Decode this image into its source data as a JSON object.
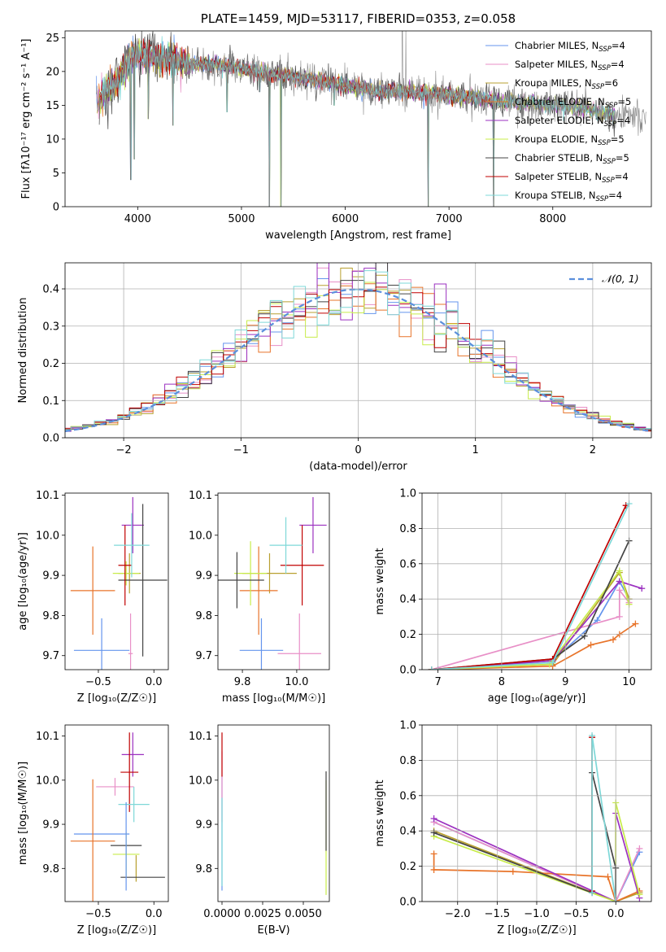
{
  "chart_data": [
    {
      "id": "spectrum",
      "type": "line",
      "title": "PLATE=1459, MJD=53117, FIBERID=0353, z=0.058",
      "xlabel": "wavelength [Angstrom, rest frame]",
      "ylabel": "Flux [fλ10⁻¹⁷ erg cm⁻² s⁻¹ A⁻¹]",
      "xlim": [
        3300,
        8950
      ],
      "ylim": [
        0,
        26
      ],
      "xticks": [
        4000,
        5000,
        6000,
        7000,
        8000
      ],
      "yticks": [
        0,
        5,
        10,
        15,
        20,
        25
      ],
      "grid": false,
      "legend_position": "top-right",
      "legend": [
        {
          "label": "Chabrier MILES, N",
          "sub": "SSP",
          "suffix": "=4",
          "color": "#6495ed"
        },
        {
          "label": "Salpeter MILES, N",
          "sub": "SSP",
          "suffix": "=4",
          "color": "#e88fc7"
        },
        {
          "label": "Kroupa MILES, N",
          "sub": "SSP",
          "suffix": "=6",
          "color": "#b8a030"
        },
        {
          "label": "Chabrier ELODIE, N",
          "sub": "SSP",
          "suffix": "=5",
          "color": "#e8742a"
        },
        {
          "label": "Salpeter ELODIE, N",
          "sub": "SSP",
          "suffix": "=4",
          "color": "#9b30c0"
        },
        {
          "label": "Kroupa ELODIE, N",
          "sub": "SSP",
          "suffix": "=5",
          "color": "#c8ec4a"
        },
        {
          "label": "Chabrier STELIB, N",
          "sub": "SSP",
          "suffix": "=5",
          "color": "#444444"
        },
        {
          "label": "Salpeter STELIB, N",
          "sub": "SSP",
          "suffix": "=4",
          "color": "#c00000"
        },
        {
          "label": "Kroupa STELIB, N",
          "sub": "SSP",
          "suffix": "=4",
          "color": "#7ed8d8"
        }
      ],
      "continuum": {
        "x": [
          3600,
          3700,
          3800,
          3900,
          4000,
          4100,
          4300,
          4500,
          4800,
          5000,
          5300,
          5600,
          6000,
          6300,
          6600,
          7000,
          7300,
          7500,
          8000,
          8300,
          8600,
          8900
        ],
        "y": [
          15,
          17.5,
          18.5,
          21.5,
          22.5,
          22,
          22,
          21,
          21,
          20.5,
          19.5,
          19,
          18,
          17,
          17,
          16.5,
          16,
          15.5,
          15,
          14.5,
          13.5,
          13
        ]
      },
      "absorption_lines": [
        {
          "x": 3933,
          "y": 4
        },
        {
          "x": 3968,
          "y": 7
        },
        {
          "x": 4102,
          "y": 13
        },
        {
          "x": 4340,
          "y": 12
        },
        {
          "x": 4861,
          "y": 14
        },
        {
          "x": 5175,
          "y": 17
        },
        {
          "x": 5270,
          "y": 0
        },
        {
          "x": 5380,
          "y": 0
        },
        {
          "x": 5893,
          "y": 15
        },
        {
          "x": 6800,
          "y": 0
        },
        {
          "x": 7430,
          "y": 0
        }
      ],
      "emission_lines": [
        {
          "x": 6550,
          "y": 26
        },
        {
          "x": 6583,
          "y": 26
        }
      ]
    },
    {
      "id": "residuals",
      "type": "line",
      "title": "",
      "xlabel": "(data-model)/error",
      "ylabel": "Normed distribution",
      "xlim": [
        -2.5,
        2.5
      ],
      "ylim": [
        0,
        0.47
      ],
      "xticks": [
        -2,
        -1,
        0,
        1,
        2
      ],
      "yticks": [
        0.0,
        0.1,
        0.2,
        0.3,
        0.4
      ],
      "grid": true,
      "legend_position": "top-right",
      "legend": [
        {
          "label": "𝒩(0, 1)",
          "color": "#5b8fdc"
        }
      ],
      "bin_width": 0.1,
      "gaussian": {
        "mean": 0,
        "sigma": 1
      }
    },
    {
      "id": "age_vs_z",
      "type": "scatter",
      "xlabel": "Z [log₁₀(Z/Z☉)]",
      "ylabel": "age  [log₁₀(age/yr)]",
      "xlim": [
        -0.8,
        0.13
      ],
      "ylim": [
        9.665,
        10.105
      ],
      "xticks": [
        -0.5,
        0.0
      ],
      "yticks": [
        9.7,
        9.8,
        9.9,
        10.0,
        10.1
      ],
      "grid": false,
      "points": [
        {
          "x": -0.47,
          "y": 9.713,
          "xerr": 0.25,
          "yerr": 0.08,
          "color": "#6495ed"
        },
        {
          "x": -0.21,
          "y": 9.705,
          "xerr": 0.02,
          "yerr": 0.1,
          "color": "#e88fc7"
        },
        {
          "x": -0.22,
          "y": 9.905,
          "xerr": 0.1,
          "yerr": 0.05,
          "color": "#b8a030"
        },
        {
          "x": -0.55,
          "y": 9.862,
          "xerr": 0.2,
          "yerr": 0.11,
          "color": "#e8742a"
        },
        {
          "x": -0.19,
          "y": 10.025,
          "xerr": 0.1,
          "yerr": 0.07,
          "color": "#9b30c0"
        },
        {
          "x": -0.25,
          "y": 9.905,
          "xerr": 0.12,
          "yerr": 0.03,
          "color": "#c8ec4a"
        },
        {
          "x": -0.1,
          "y": 9.888,
          "xerr": 0.22,
          "yerr": 0.19,
          "color": "#444444"
        },
        {
          "x": -0.26,
          "y": 9.925,
          "xerr": 0.06,
          "yerr": 0.1,
          "color": "#c00000"
        },
        {
          "x": -0.2,
          "y": 9.975,
          "xerr": 0.16,
          "yerr": 0.08,
          "color": "#7ed8d8"
        }
      ]
    },
    {
      "id": "age_vs_mass",
      "type": "scatter",
      "xlabel": "mass [log₁₀(M/M☉)]",
      "ylabel": "",
      "xlim": [
        9.71,
        10.12
      ],
      "ylim": [
        9.665,
        10.105
      ],
      "xticks": [
        9.8,
        10.0
      ],
      "yticks": [
        9.7,
        9.8,
        9.9,
        10.0,
        10.1
      ],
      "grid": false,
      "points": [
        {
          "x": 9.87,
          "y": 9.713,
          "xerr": 0.08,
          "yerr": 0.08,
          "color": "#6495ed"
        },
        {
          "x": 10.01,
          "y": 9.705,
          "xerr": 0.08,
          "yerr": 0.1,
          "color": "#e88fc7"
        },
        {
          "x": 9.9,
          "y": 9.905,
          "xerr": 0.1,
          "yerr": 0.05,
          "color": "#b8a030"
        },
        {
          "x": 9.86,
          "y": 9.862,
          "xerr": 0.07,
          "yerr": 0.11,
          "color": "#e8742a"
        },
        {
          "x": 10.06,
          "y": 10.025,
          "xerr": 0.05,
          "yerr": 0.07,
          "color": "#9b30c0"
        },
        {
          "x": 9.83,
          "y": 9.905,
          "xerr": 0.06,
          "yerr": 0.08,
          "color": "#c8ec4a"
        },
        {
          "x": 9.78,
          "y": 9.888,
          "xerr": 0.1,
          "yerr": 0.07,
          "color": "#444444"
        },
        {
          "x": 10.02,
          "y": 9.925,
          "xerr": 0.08,
          "yerr": 0.1,
          "color": "#c00000"
        },
        {
          "x": 9.96,
          "y": 9.975,
          "xerr": 0.06,
          "yerr": 0.07,
          "color": "#7ed8d8"
        }
      ]
    },
    {
      "id": "massweight_vs_age",
      "type": "line",
      "xlabel": "age  [log₁₀(age/yr)]",
      "ylabel": "mass weight",
      "xlim": [
        6.75,
        10.35
      ],
      "ylim": [
        0,
        1
      ],
      "xticks": [
        7,
        8,
        9,
        10
      ],
      "yticks": [
        0.0,
        0.2,
        0.4,
        0.6,
        0.8,
        1.0
      ],
      "grid": true,
      "series": [
        {
          "color": "#6495ed",
          "x": [
            6.9,
            7.0,
            8.8,
            9.5,
            9.85,
            10.0
          ],
          "y": [
            0.0,
            0.0,
            0.05,
            0.28,
            0.5,
            0.4
          ]
        },
        {
          "color": "#e88fc7",
          "x": [
            6.9,
            9.85,
            9.85,
            10.0
          ],
          "y": [
            0.0,
            0.3,
            0.45,
            0.38
          ]
        },
        {
          "color": "#b8a030",
          "x": [
            6.9,
            8.8,
            9.85,
            10.0
          ],
          "y": [
            0.0,
            0.03,
            0.55,
            0.4
          ]
        },
        {
          "color": "#e8742a",
          "x": [
            6.9,
            8.8,
            9.4,
            9.75,
            9.85,
            10.1
          ],
          "y": [
            0.0,
            0.02,
            0.14,
            0.17,
            0.2,
            0.26
          ]
        },
        {
          "color": "#9b30c0",
          "x": [
            6.9,
            8.8,
            9.85,
            10.2
          ],
          "y": [
            0.0,
            0.05,
            0.5,
            0.46
          ]
        },
        {
          "color": "#c8ec4a",
          "x": [
            6.9,
            8.75,
            9.85,
            10.0
          ],
          "y": [
            0.0,
            0.03,
            0.56,
            0.37
          ]
        },
        {
          "color": "#444444",
          "x": [
            6.9,
            8.8,
            9.3,
            10.0
          ],
          "y": [
            0.0,
            0.06,
            0.19,
            0.73
          ]
        },
        {
          "color": "#c00000",
          "x": [
            6.9,
            8.8,
            9.95
          ],
          "y": [
            0.0,
            0.06,
            0.93
          ]
        },
        {
          "color": "#7ed8d8",
          "x": [
            6.9,
            8.8,
            10.0
          ],
          "y": [
            0.0,
            0.04,
            0.94
          ]
        }
      ]
    },
    {
      "id": "mass_vs_z",
      "type": "scatter",
      "xlabel": "Z [log₁₀(Z/Z☉)]",
      "ylabel": "mass [log₁₀(M/M☉)]",
      "xlim": [
        -0.8,
        0.13
      ],
      "ylim": [
        9.725,
        10.125
      ],
      "xticks": [
        -0.5,
        0.0
      ],
      "yticks": [
        9.8,
        9.9,
        10.0,
        10.1
      ],
      "grid": false,
      "points": [
        {
          "x": -0.47,
          "y": 9.878,
          "xerr": 0.25,
          "yerr": 0.0,
          "color": "#6495ed"
        },
        {
          "x": -0.35,
          "y": 9.985,
          "xerr": 0.17,
          "yerr": 0.02,
          "color": "#e88fc7"
        },
        {
          "x": -0.16,
          "y": 9.8,
          "xerr": 0.0,
          "yerr": 0.03,
          "color": "#b8a030"
        },
        {
          "x": -0.55,
          "y": 9.862,
          "xerr": 0.2,
          "yerr": 0.14,
          "color": "#e8742a"
        },
        {
          "x": -0.19,
          "y": 10.058,
          "xerr": 0.1,
          "yerr": 0.05,
          "color": "#9b30c0"
        },
        {
          "x": -0.25,
          "y": 9.832,
          "xerr": 0.12,
          "yerr": 0.05,
          "color": "#c8ec4a"
        },
        {
          "x": -0.1,
          "y": 9.78,
          "xerr": 0.2,
          "yerr": 0.0,
          "color": "#444444"
        },
        {
          "x": -0.22,
          "y": 10.018,
          "xerr": 0.08,
          "yerr": 0.09,
          "color": "#c00000"
        },
        {
          "x": -0.18,
          "y": 9.945,
          "xerr": 0.14,
          "yerr": 0.04,
          "color": "#7ed8d8"
        },
        {
          "x": -0.25,
          "y": 9.852,
          "xerr": 0.14,
          "yerr": 0.0,
          "color": "#444444"
        },
        {
          "x": -0.25,
          "y": 9.85,
          "xerr": 0.0,
          "yerr": 0.1,
          "color": "#6495ed"
        }
      ]
    },
    {
      "id": "mass_vs_ebv",
      "type": "scatter",
      "xlabel": "E(B-V)",
      "ylabel": "",
      "xlim": [
        -0.00025,
        0.0066
      ],
      "ylim": [
        9.725,
        10.125
      ],
      "xticks": [
        0.0,
        0.0025,
        0.005
      ],
      "xtick_labels": [
        "0.0000",
        "0.0025",
        "0.0050"
      ],
      "yticks": [
        9.8,
        9.9,
        10.0,
        10.1
      ],
      "grid": false,
      "points": [
        {
          "x": 0.0,
          "y": 9.88,
          "xerr": 0.0,
          "yerr": 0.13,
          "color": "#6495ed"
        },
        {
          "x": 0.0,
          "y": 9.985,
          "xerr": 0.0,
          "yerr": 0.08,
          "color": "#e88fc7"
        },
        {
          "x": 0.0,
          "y": 10.058,
          "xerr": 0.0,
          "yerr": 0.05,
          "color": "#c00000"
        },
        {
          "x": 0.0,
          "y": 9.86,
          "xerr": 0.0,
          "yerr": 0.1,
          "color": "#7ed8d8"
        },
        {
          "x": 0.0064,
          "y": 9.87,
          "xerr": 0.0,
          "yerr": 0.13,
          "color": "#c8ec4a"
        },
        {
          "x": 0.0064,
          "y": 9.93,
          "xerr": 0.0,
          "yerr": 0.09,
          "color": "#444444"
        }
      ]
    },
    {
      "id": "massweight_vs_z",
      "type": "line",
      "xlabel": "Z [log₁₀(Z/Z☉)]",
      "ylabel": "mass weight",
      "xlim": [
        -2.45,
        0.45
      ],
      "ylim": [
        0,
        1
      ],
      "xticks": [
        -2.0,
        -1.5,
        -1.0,
        -0.5,
        0.0
      ],
      "yticks": [
        0.0,
        0.2,
        0.4,
        0.6,
        0.8,
        1.0
      ],
      "grid": true,
      "series": [
        {
          "color": "#6495ed",
          "x": [
            -2.3,
            0.0,
            0.3
          ],
          "y": [
            0.45,
            0.0,
            0.28
          ]
        },
        {
          "color": "#e88fc7",
          "x": [
            -2.3,
            0.0,
            0.3
          ],
          "y": [
            0.45,
            0.0,
            0.3
          ]
        },
        {
          "color": "#b8a030",
          "x": [
            -2.3,
            0.0,
            0.3
          ],
          "y": [
            0.4,
            0.0,
            0.05
          ]
        },
        {
          "color": "#e8742a",
          "x": [
            -2.3,
            -2.3,
            -1.3,
            -0.1,
            0.0,
            0.3
          ],
          "y": [
            0.27,
            0.18,
            0.17,
            0.14,
            0.0,
            0.06
          ]
        },
        {
          "color": "#9b30c0",
          "x": [
            -2.3,
            0.0,
            0.0,
            0.3
          ],
          "y": [
            0.47,
            0.0,
            0.5,
            0.02
          ]
        },
        {
          "color": "#c8ec4a",
          "x": [
            -2.3,
            0.0,
            0.0,
            0.3
          ],
          "y": [
            0.37,
            0.0,
            0.56,
            0.04
          ]
        },
        {
          "color": "#444444",
          "x": [
            -2.3,
            -0.3,
            -0.3,
            0.0,
            0.0
          ],
          "y": [
            0.39,
            0.05,
            0.73,
            0.19,
            0.0
          ]
        },
        {
          "color": "#c00000",
          "x": [
            -0.3,
            -0.3
          ],
          "y": [
            0.06,
            0.93
          ]
        },
        {
          "color": "#7ed8d8",
          "x": [
            -0.3,
            -0.3,
            0.0
          ],
          "y": [
            0.05,
            0.94,
            0.0
          ]
        }
      ]
    }
  ]
}
